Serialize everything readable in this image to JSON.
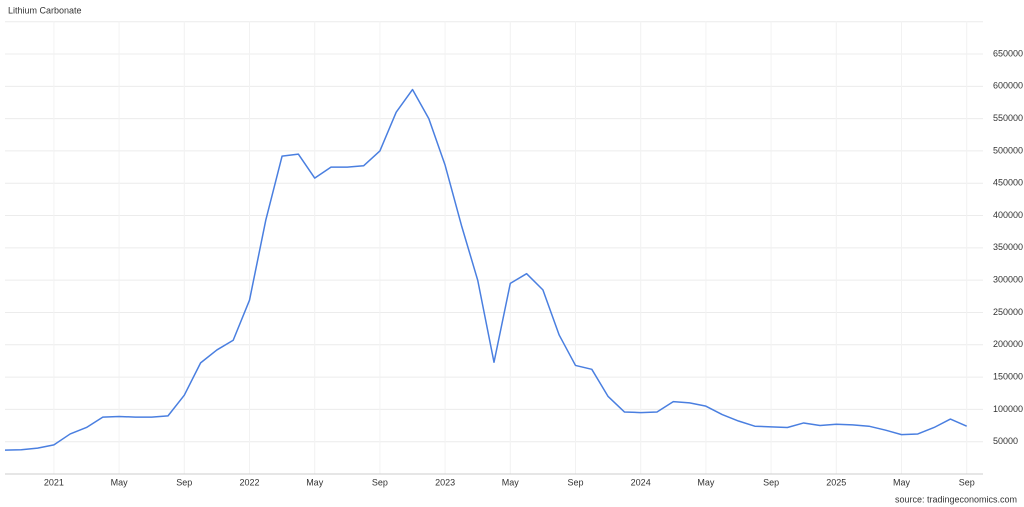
{
  "chart_data": {
    "type": "line",
    "title": "Lithium Carbonate",
    "source": "source: tradingeconomics.com",
    "x": [
      "2020-10",
      "2020-11",
      "2020-12",
      "2021-01",
      "2021-02",
      "2021-03",
      "2021-04",
      "2021-05",
      "2021-06",
      "2021-07",
      "2021-08",
      "2021-09",
      "2021-10",
      "2021-11",
      "2021-12",
      "2022-01",
      "2022-02",
      "2022-03",
      "2022-04",
      "2022-05",
      "2022-06",
      "2022-07",
      "2022-08",
      "2022-09",
      "2022-10",
      "2022-11",
      "2022-12",
      "2023-01",
      "2023-02",
      "2023-03",
      "2023-04",
      "2023-05",
      "2023-06",
      "2023-07",
      "2023-08",
      "2023-09",
      "2023-10",
      "2023-11",
      "2023-12",
      "2024-01",
      "2024-02",
      "2024-03",
      "2024-04",
      "2024-05",
      "2024-06",
      "2024-07",
      "2024-08",
      "2024-09",
      "2024-10",
      "2024-11",
      "2024-12",
      "2025-01",
      "2025-02",
      "2025-03",
      "2025-04",
      "2025-05",
      "2025-06",
      "2025-07",
      "2025-08",
      "2025-09"
    ],
    "series": [
      {
        "name": "Lithium Carbonate",
        "color": "#4a7fe0",
        "values": [
          37000,
          37500,
          40000,
          45000,
          62000,
          72000,
          88000,
          89000,
          88000,
          88000,
          90000,
          122000,
          172000,
          192000,
          207000,
          269000,
          393000,
          492000,
          495000,
          458000,
          475000,
          475000,
          477000,
          500000,
          560000,
          595000,
          550000,
          478000,
          385000,
          300000,
          173000,
          295000,
          310000,
          285000,
          215000,
          168000,
          162000,
          120000,
          96000,
          95000,
          96000,
          112000,
          110000,
          105000,
          92000,
          82000,
          74000,
          73000,
          72000,
          79000,
          75000,
          77000,
          76000,
          74000,
          68000,
          61000,
          62000,
          72000,
          85000,
          74000
        ]
      }
    ],
    "xlim": [
      "2020-10",
      "2025-10"
    ],
    "xticks": [
      {
        "value": "2021-01",
        "label": "2021"
      },
      {
        "value": "2021-05",
        "label": "May"
      },
      {
        "value": "2021-09",
        "label": "Sep"
      },
      {
        "value": "2022-01",
        "label": "2022"
      },
      {
        "value": "2022-05",
        "label": "May"
      },
      {
        "value": "2022-09",
        "label": "Sep"
      },
      {
        "value": "2023-01",
        "label": "2023"
      },
      {
        "value": "2023-05",
        "label": "May"
      },
      {
        "value": "2023-09",
        "label": "Sep"
      },
      {
        "value": "2024-01",
        "label": "2024"
      },
      {
        "value": "2024-05",
        "label": "May"
      },
      {
        "value": "2024-09",
        "label": "Sep"
      },
      {
        "value": "2025-01",
        "label": "2025"
      },
      {
        "value": "2025-05",
        "label": "May"
      },
      {
        "value": "2025-09",
        "label": "Sep"
      }
    ],
    "ylim": [
      0,
      700000
    ],
    "yticks": [
      50000,
      100000,
      150000,
      200000,
      250000,
      300000,
      350000,
      400000,
      450000,
      500000,
      550000,
      600000,
      650000
    ],
    "grid": true
  }
}
